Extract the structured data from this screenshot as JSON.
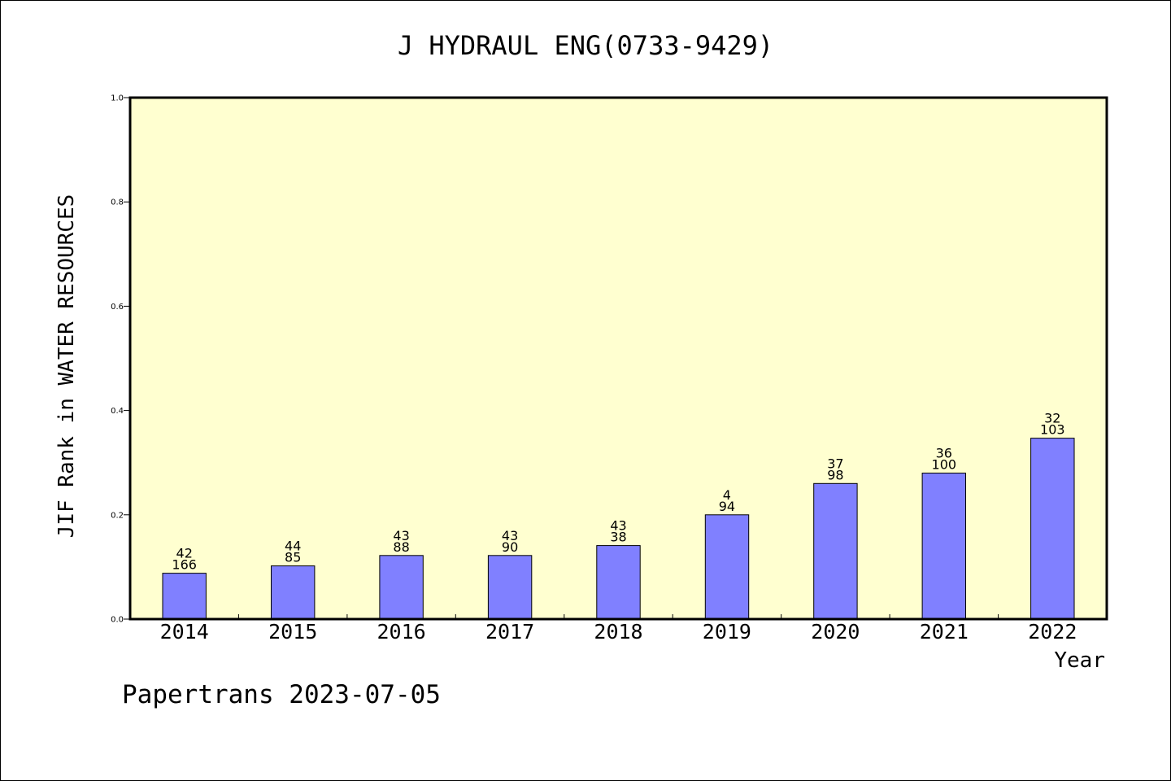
{
  "chart_data": {
    "type": "bar",
    "title": "J HYDRAUL ENG(0733-9429)",
    "xlabel": "Year",
    "ylabel": "JIF Rank in WATER RESOURCES",
    "ylim": [
      0.0,
      1.0
    ],
    "yticks": [
      "0.0",
      "0.2",
      "0.4",
      "0.6",
      "0.8",
      "1.0"
    ],
    "categories": [
      "2014",
      "2015",
      "2016",
      "2017",
      "2018",
      "2019",
      "2020",
      "2021",
      "2022"
    ],
    "values": [
      0.088,
      0.102,
      0.122,
      0.122,
      0.141,
      0.2,
      0.26,
      0.28,
      0.347
    ],
    "labels": [
      {
        "top": "42",
        "bottom": "166"
      },
      {
        "top": "44",
        "bottom": "85"
      },
      {
        "top": "43",
        "bottom": "88"
      },
      {
        "top": "43",
        "bottom": "90"
      },
      {
        "top": "43",
        "bottom": "38"
      },
      {
        "top": "4",
        "bottom": "94"
      },
      {
        "top": "37",
        "bottom": "98"
      },
      {
        "top": "36",
        "bottom": "100"
      },
      {
        "top": "32",
        "bottom": "103"
      }
    ],
    "grid": false,
    "colors": {
      "plot_background": "#ffffd0",
      "bar_fill": "#8080ff",
      "bar_stroke": "#000000"
    }
  },
  "footer": {
    "text": "Papertrans 2023-07-05"
  }
}
